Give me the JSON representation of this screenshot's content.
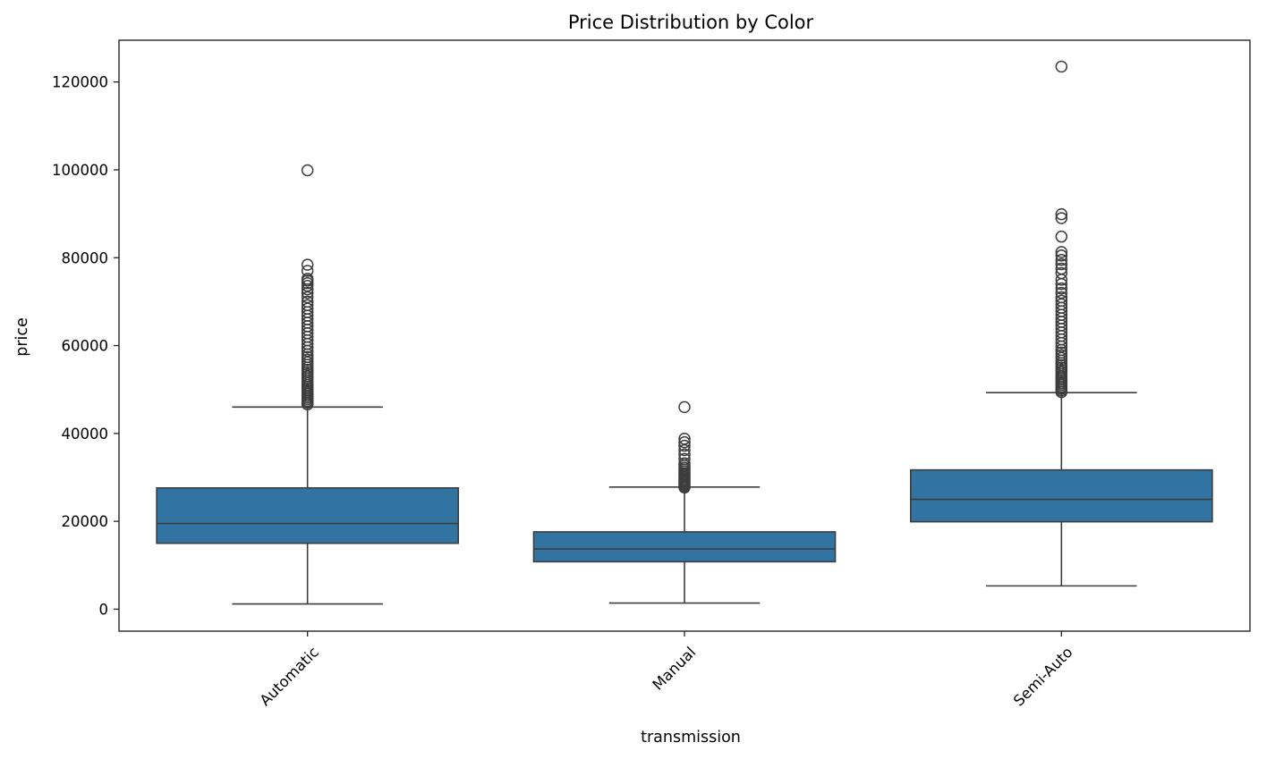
{
  "chart_data": {
    "type": "boxplot",
    "title": "Price Distribution by Color",
    "xlabel": "transmission",
    "ylabel": "price",
    "ylim": [
      -5000,
      129500
    ],
    "yticks": [
      0,
      20000,
      40000,
      60000,
      80000,
      100000,
      120000
    ],
    "ytick_labels": [
      "0",
      "20000",
      "40000",
      "60000",
      "80000",
      "100000",
      "120000"
    ],
    "categories": [
      "Automatic",
      "Manual",
      "Semi-Auto"
    ],
    "xtick_rotation_deg": -45,
    "grid": false,
    "legend": "none",
    "colors": {
      "box_fill": "#3274a1",
      "box_edge": "#3d3d3d",
      "axis": "#262626",
      "text": "#000000"
    },
    "boxes": [
      {
        "category": "Automatic",
        "whisker_low": 1200,
        "q1": 15000,
        "median": 19500,
        "q3": 27600,
        "whisker_high": 46000,
        "outliers": [
          46600,
          47000,
          47400,
          47800,
          48200,
          48600,
          49000,
          49400,
          49800,
          50200,
          50600,
          51000,
          51500,
          52000,
          52500,
          53000,
          53500,
          54000,
          54500,
          55000,
          55600,
          56200,
          56800,
          57400,
          58000,
          58800,
          59600,
          60400,
          61200,
          62000,
          62800,
          63600,
          64400,
          65200,
          66000,
          66800,
          67600,
          68400,
          69200,
          70000,
          71000,
          72000,
          72800,
          73600,
          74200,
          74800,
          75200,
          77000,
          78400,
          99900
        ]
      },
      {
        "category": "Manual",
        "whisker_low": 1400,
        "q1": 10800,
        "median": 13700,
        "q3": 17600,
        "whisker_high": 27800,
        "outliers": [
          27700,
          28000,
          28300,
          28600,
          28900,
          29200,
          29500,
          29800,
          30100,
          30400,
          30700,
          31000,
          31400,
          31800,
          32200,
          32700,
          33200,
          34200,
          35200,
          36200,
          37200,
          38000,
          38800,
          46000
        ]
      },
      {
        "category": "Semi-Auto",
        "whisker_low": 5300,
        "q1": 19900,
        "median": 25000,
        "q3": 31700,
        "whisker_high": 49300,
        "outliers": [
          49400,
          49800,
          50200,
          50600,
          51000,
          51400,
          51800,
          52200,
          52600,
          53000,
          53500,
          54000,
          54500,
          55000,
          55500,
          56000,
          56600,
          57200,
          57800,
          58400,
          59000,
          59800,
          60600,
          61400,
          62200,
          63000,
          63800,
          64600,
          65400,
          66200,
          67000,
          67800,
          68600,
          69400,
          70200,
          71000,
          72000,
          73000,
          74000,
          75000,
          76500,
          77500,
          78500,
          79500,
          80500,
          81300,
          84800,
          89000,
          89900,
          123500
        ]
      }
    ]
  }
}
